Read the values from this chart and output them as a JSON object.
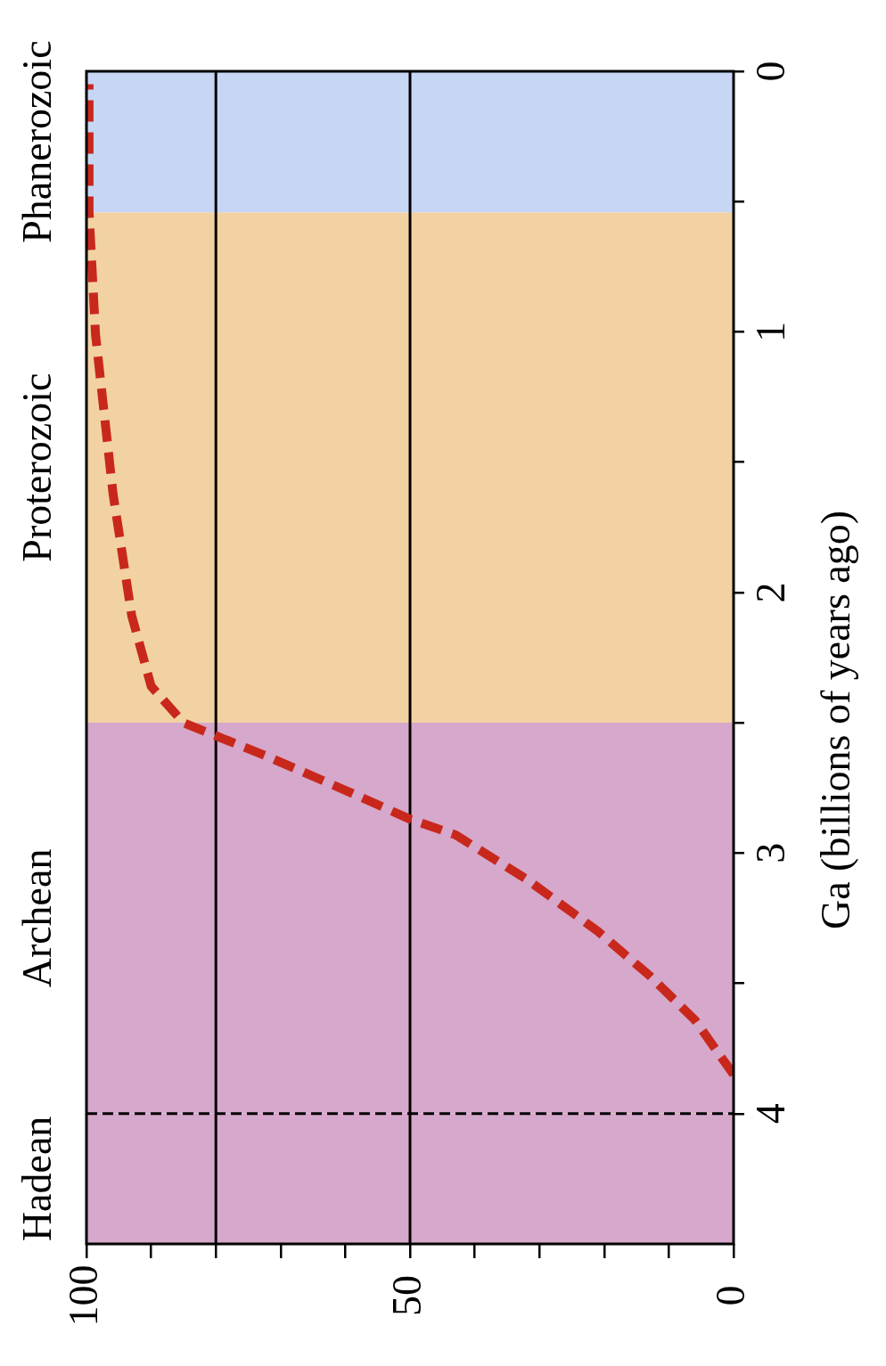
{
  "chart_data": {
    "type": "line",
    "orientation": "horizontal",
    "ylabel": "Ga (billions of years ago)",
    "x": [
      3.85,
      3.64,
      3.47,
      3.3,
      3.1,
      2.93,
      2.87,
      2.77,
      2.63,
      2.5,
      2.36,
      2.09,
      1.62,
      1.01,
      0.54,
      0.05
    ],
    "series": [
      {
        "color": "#c8281c",
        "values": [
          0,
          6,
          13,
          21,
          32,
          43,
          50,
          59,
          72,
          85,
          90,
          93,
          95.9,
          98.6,
          99.6,
          99.6
        ]
      }
    ],
    "line_style": "dashed",
    "marker": "none",
    "legend": false,
    "grid": false,
    "xlim": [
      100,
      0
    ],
    "xticks": [
      100,
      {
        "value": 90,
        "label": null
      },
      {
        "value": 80,
        "label": null
      },
      {
        "value": 70,
        "label": null
      },
      {
        "value": 60,
        "label": null
      },
      50,
      {
        "value": 40,
        "label": null
      },
      {
        "value": 30,
        "label": null
      },
      {
        "value": 20,
        "label": null
      },
      {
        "value": 10,
        "label": null
      },
      0
    ],
    "ylim": [
      4.5,
      0
    ],
    "yticks": [
      0,
      {
        "value": 0.5,
        "label": null
      },
      1,
      {
        "value": 1.5,
        "label": null
      },
      2,
      {
        "value": 2.5,
        "label": null
      },
      3,
      {
        "value": 3.5,
        "label": null
      },
      4
    ],
    "bands": [
      {
        "axis": "y",
        "from": 4.5,
        "to": 4.0,
        "label": "Hadean",
        "color": "#d6a8cb"
      },
      {
        "axis": "y",
        "from": 4.0,
        "to": 2.5,
        "label": "Archean",
        "color": "#d6a8cb"
      },
      {
        "axis": "y",
        "from": 2.5,
        "to": 0.541,
        "label": "Proterozoic",
        "color": "#f2d2a2"
      },
      {
        "axis": "y",
        "from": 0.541,
        "to": 0,
        "label": "Phanerozoic",
        "color": "#c7d6f4"
      }
    ],
    "ref_lines": [
      {
        "axis": "y",
        "value": 4,
        "line_style": "dashed",
        "color": "#000000"
      },
      {
        "axis": "x",
        "value": 80,
        "color": "#000000"
      },
      {
        "axis": "x",
        "value": 50,
        "color": "#000000"
      }
    ]
  }
}
